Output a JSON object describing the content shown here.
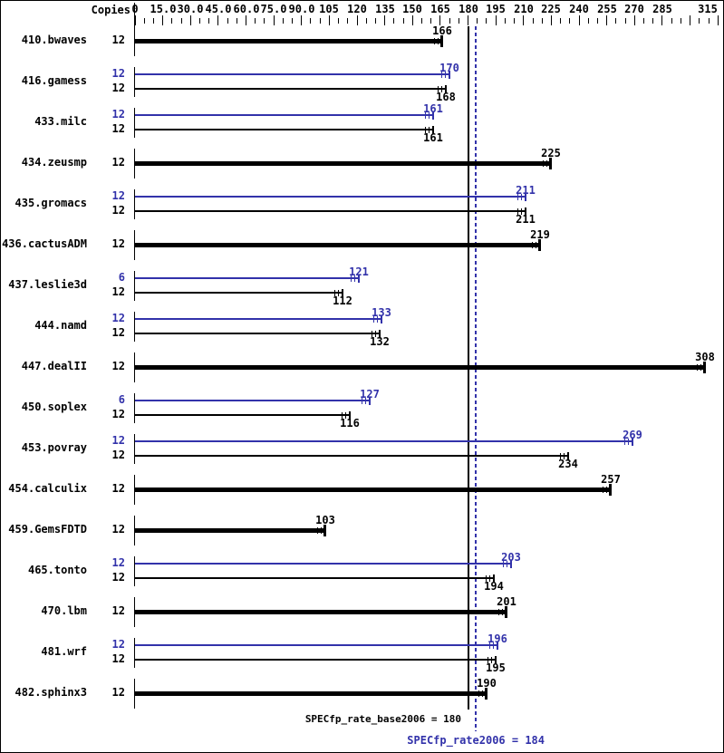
{
  "header": {
    "copies_label": "Copies"
  },
  "colors": {
    "base": "#000000",
    "peak": "#3232aa",
    "background": "#ffffff"
  },
  "chart_data": {
    "type": "bar",
    "orientation": "horizontal",
    "title": "",
    "xlabel": "Copies",
    "x_axis": {
      "min": 0,
      "max": 315,
      "major_step": 15,
      "minor_step": 5,
      "tick_labels": [
        {
          "value": 0,
          "label": "0"
        },
        {
          "value": 15,
          "label": "15.0"
        },
        {
          "value": 30,
          "label": "30.0"
        },
        {
          "value": 45,
          "label": "45.0"
        },
        {
          "value": 60,
          "label": "60.0"
        },
        {
          "value": 75,
          "label": "75.0"
        },
        {
          "value": 90,
          "label": "90.0"
        },
        {
          "value": 105,
          "label": "105"
        },
        {
          "value": 120,
          "label": "120"
        },
        {
          "value": 135,
          "label": "135"
        },
        {
          "value": 150,
          "label": "150"
        },
        {
          "value": 165,
          "label": "165"
        },
        {
          "value": 180,
          "label": "180"
        },
        {
          "value": 195,
          "label": "195"
        },
        {
          "value": 210,
          "label": "210"
        },
        {
          "value": 225,
          "label": "225"
        },
        {
          "value": 240,
          "label": "240"
        },
        {
          "value": 255,
          "label": "255"
        },
        {
          "value": 270,
          "label": "270"
        },
        {
          "value": 285,
          "label": "285"
        },
        {
          "value": 315,
          "label": "315"
        }
      ]
    },
    "benchmarks": [
      {
        "name": "410.bwaves",
        "bars": [
          {
            "kind": "base",
            "copies": "12",
            "value": 166
          }
        ]
      },
      {
        "name": "416.gamess",
        "bars": [
          {
            "kind": "peak",
            "copies": "12",
            "value": 170
          },
          {
            "kind": "base",
            "copies": "12",
            "value": 168
          }
        ]
      },
      {
        "name": "433.milc",
        "bars": [
          {
            "kind": "peak",
            "copies": "12",
            "value": 161
          },
          {
            "kind": "base",
            "copies": "12",
            "value": 161
          }
        ]
      },
      {
        "name": "434.zeusmp",
        "bars": [
          {
            "kind": "base",
            "copies": "12",
            "value": 225
          }
        ]
      },
      {
        "name": "435.gromacs",
        "bars": [
          {
            "kind": "peak",
            "copies": "12",
            "value": 211
          },
          {
            "kind": "base",
            "copies": "12",
            "value": 211
          }
        ]
      },
      {
        "name": "436.cactusADM",
        "bars": [
          {
            "kind": "base",
            "copies": "12",
            "value": 219
          }
        ]
      },
      {
        "name": "437.leslie3d",
        "bars": [
          {
            "kind": "peak",
            "copies": "6",
            "value": 121
          },
          {
            "kind": "base",
            "copies": "12",
            "value": 112
          }
        ]
      },
      {
        "name": "444.namd",
        "bars": [
          {
            "kind": "peak",
            "copies": "12",
            "value": 133
          },
          {
            "kind": "base",
            "copies": "12",
            "value": 132
          }
        ]
      },
      {
        "name": "447.dealII",
        "bars": [
          {
            "kind": "base",
            "copies": "12",
            "value": 308
          }
        ]
      },
      {
        "name": "450.soplex",
        "bars": [
          {
            "kind": "peak",
            "copies": "6",
            "value": 127
          },
          {
            "kind": "base",
            "copies": "12",
            "value": 116
          }
        ]
      },
      {
        "name": "453.povray",
        "bars": [
          {
            "kind": "peak",
            "copies": "12",
            "value": 269
          },
          {
            "kind": "base",
            "copies": "12",
            "value": 234
          }
        ]
      },
      {
        "name": "454.calculix",
        "bars": [
          {
            "kind": "base",
            "copies": "12",
            "value": 257
          }
        ]
      },
      {
        "name": "459.GemsFDTD",
        "bars": [
          {
            "kind": "base",
            "copies": "12",
            "value": 103
          }
        ]
      },
      {
        "name": "465.tonto",
        "bars": [
          {
            "kind": "peak",
            "copies": "12",
            "value": 203
          },
          {
            "kind": "base",
            "copies": "12",
            "value": 194
          }
        ]
      },
      {
        "name": "470.lbm",
        "bars": [
          {
            "kind": "base",
            "copies": "12",
            "value": 201
          }
        ]
      },
      {
        "name": "481.wrf",
        "bars": [
          {
            "kind": "peak",
            "copies": "12",
            "value": 196
          },
          {
            "kind": "base",
            "copies": "12",
            "value": 195
          }
        ]
      },
      {
        "name": "482.sphinx3",
        "bars": [
          {
            "kind": "base",
            "copies": "12",
            "value": 190
          }
        ]
      }
    ],
    "reference_lines": [
      {
        "name": "base",
        "label": "SPECfp_rate_base2006 = 180",
        "value": 180,
        "line": "solid"
      },
      {
        "name": "peak",
        "label": "SPECfp_rate2006 = 184",
        "value": 184,
        "line": "dotted"
      }
    ]
  }
}
